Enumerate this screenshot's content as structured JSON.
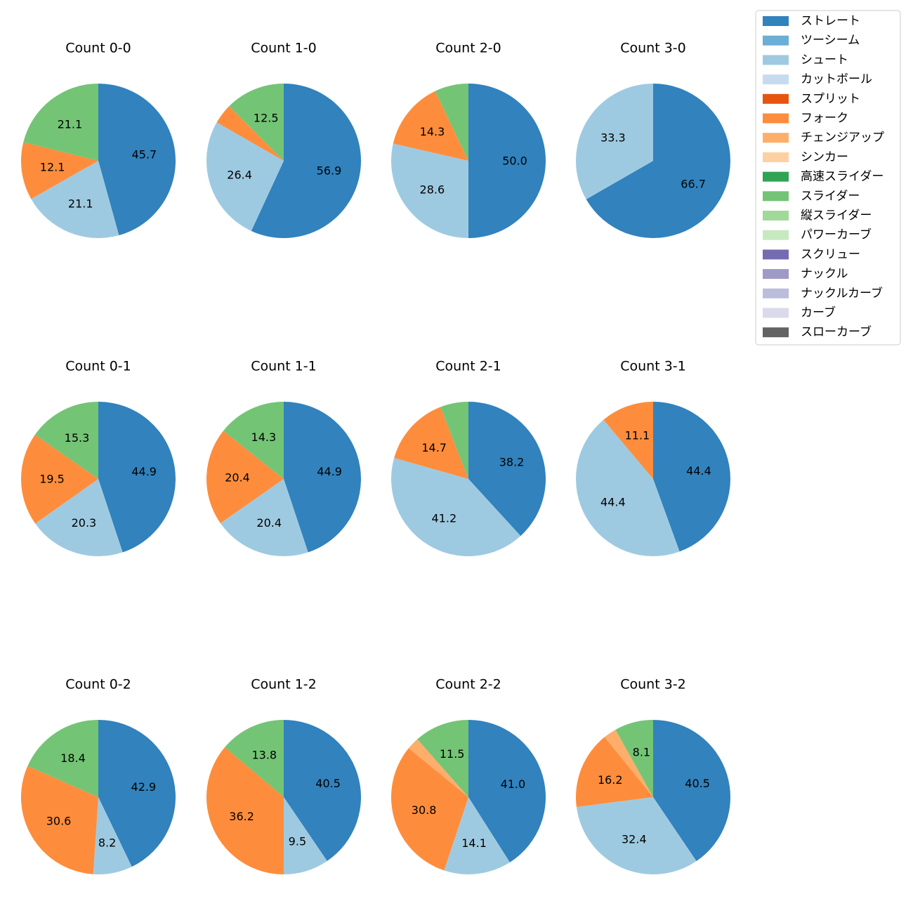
{
  "legend": {
    "items": [
      {
        "label": "ストレート",
        "color": "#3182bd"
      },
      {
        "label": "ツーシーム",
        "color": "#6baed6"
      },
      {
        "label": "シュート",
        "color": "#9ecae1"
      },
      {
        "label": "カットボール",
        "color": "#c6dbef"
      },
      {
        "label": "スプリット",
        "color": "#e6550d"
      },
      {
        "label": "フォーク",
        "color": "#fd8d3c"
      },
      {
        "label": "チェンジアップ",
        "color": "#fdae6b"
      },
      {
        "label": "シンカー",
        "color": "#fdd0a2"
      },
      {
        "label": "高速スライダー",
        "color": "#31a354"
      },
      {
        "label": "スライダー",
        "color": "#74c476"
      },
      {
        "label": "縦スライダー",
        "color": "#a1d99b"
      },
      {
        "label": "パワーカーブ",
        "color": "#c7e9c0"
      },
      {
        "label": "スクリュー",
        "color": "#756bb1"
      },
      {
        "label": "ナックル",
        "color": "#9e9ac8"
      },
      {
        "label": "ナックルカーブ",
        "color": "#bcbddc"
      },
      {
        "label": "カーブ",
        "color": "#dadaeb"
      },
      {
        "label": "スローカーブ",
        "color": "#636363"
      }
    ]
  },
  "chart_data": [
    {
      "type": "pie",
      "title": "Count 0-0",
      "slices": [
        {
          "pitch": "ストレート",
          "value": 45.7,
          "label": "45.7"
        },
        {
          "pitch": "シュート",
          "value": 21.1,
          "label": "21.1"
        },
        {
          "pitch": "フォーク",
          "value": 12.1,
          "label": "12.1"
        },
        {
          "pitch": "スライダー",
          "value": 21.1,
          "label": "21.1"
        }
      ]
    },
    {
      "type": "pie",
      "title": "Count 1-0",
      "slices": [
        {
          "pitch": "ストレート",
          "value": 56.9,
          "label": "56.9"
        },
        {
          "pitch": "シュート",
          "value": 26.4,
          "label": "26.4"
        },
        {
          "pitch": "フォーク",
          "value": 4.2,
          "label": ""
        },
        {
          "pitch": "スライダー",
          "value": 12.5,
          "label": "12.5"
        }
      ]
    },
    {
      "type": "pie",
      "title": "Count 2-0",
      "slices": [
        {
          "pitch": "ストレート",
          "value": 50.0,
          "label": "50.0"
        },
        {
          "pitch": "シュート",
          "value": 28.6,
          "label": "28.6"
        },
        {
          "pitch": "フォーク",
          "value": 14.3,
          "label": "14.3"
        },
        {
          "pitch": "スライダー",
          "value": 7.1,
          "label": ""
        }
      ]
    },
    {
      "type": "pie",
      "title": "Count 3-0",
      "slices": [
        {
          "pitch": "ストレート",
          "value": 66.7,
          "label": "66.7"
        },
        {
          "pitch": "シュート",
          "value": 33.3,
          "label": "33.3"
        }
      ]
    },
    {
      "type": "pie",
      "title": "Count 0-1",
      "slices": [
        {
          "pitch": "ストレート",
          "value": 44.9,
          "label": "44.9"
        },
        {
          "pitch": "シュート",
          "value": 20.3,
          "label": "20.3"
        },
        {
          "pitch": "フォーク",
          "value": 19.5,
          "label": "19.5"
        },
        {
          "pitch": "スライダー",
          "value": 15.3,
          "label": "15.3"
        }
      ]
    },
    {
      "type": "pie",
      "title": "Count 1-1",
      "slices": [
        {
          "pitch": "ストレート",
          "value": 44.9,
          "label": "44.9"
        },
        {
          "pitch": "シュート",
          "value": 20.4,
          "label": "20.4"
        },
        {
          "pitch": "フォーク",
          "value": 20.4,
          "label": "20.4"
        },
        {
          "pitch": "スライダー",
          "value": 14.3,
          "label": "14.3"
        }
      ]
    },
    {
      "type": "pie",
      "title": "Count 2-1",
      "slices": [
        {
          "pitch": "ストレート",
          "value": 38.2,
          "label": "38.2"
        },
        {
          "pitch": "シュート",
          "value": 41.2,
          "label": "41.2"
        },
        {
          "pitch": "フォーク",
          "value": 14.7,
          "label": "14.7"
        },
        {
          "pitch": "スライダー",
          "value": 5.9,
          "label": ""
        }
      ]
    },
    {
      "type": "pie",
      "title": "Count 3-1",
      "slices": [
        {
          "pitch": "ストレート",
          "value": 44.4,
          "label": "44.4"
        },
        {
          "pitch": "シュート",
          "value": 44.4,
          "label": "44.4"
        },
        {
          "pitch": "フォーク",
          "value": 11.1,
          "label": "11.1"
        }
      ]
    },
    {
      "type": "pie",
      "title": "Count 0-2",
      "slices": [
        {
          "pitch": "ストレート",
          "value": 42.9,
          "label": "42.9"
        },
        {
          "pitch": "シュート",
          "value": 8.2,
          "label": "8.2"
        },
        {
          "pitch": "フォーク",
          "value": 30.6,
          "label": "30.6"
        },
        {
          "pitch": "スライダー",
          "value": 18.4,
          "label": "18.4"
        }
      ]
    },
    {
      "type": "pie",
      "title": "Count 1-2",
      "slices": [
        {
          "pitch": "ストレート",
          "value": 40.5,
          "label": "40.5"
        },
        {
          "pitch": "シュート",
          "value": 9.5,
          "label": "9.5"
        },
        {
          "pitch": "フォーク",
          "value": 36.2,
          "label": "36.2"
        },
        {
          "pitch": "スライダー",
          "value": 13.8,
          "label": "13.8"
        }
      ]
    },
    {
      "type": "pie",
      "title": "Count 2-2",
      "slices": [
        {
          "pitch": "ストレート",
          "value": 41.0,
          "label": "41.0"
        },
        {
          "pitch": "シュート",
          "value": 14.1,
          "label": "14.1"
        },
        {
          "pitch": "フォーク",
          "value": 30.8,
          "label": "30.8"
        },
        {
          "pitch": "チェンジアップ",
          "value": 2.6,
          "label": ""
        },
        {
          "pitch": "スライダー",
          "value": 11.5,
          "label": "11.5"
        }
      ]
    },
    {
      "type": "pie",
      "title": "Count 3-2",
      "slices": [
        {
          "pitch": "ストレート",
          "value": 40.5,
          "label": "40.5"
        },
        {
          "pitch": "シュート",
          "value": 32.4,
          "label": "32.4"
        },
        {
          "pitch": "フォーク",
          "value": 16.2,
          "label": "16.2"
        },
        {
          "pitch": "チェンジアップ",
          "value": 2.7,
          "label": ""
        },
        {
          "pitch": "スライダー",
          "value": 8.1,
          "label": "8.1"
        }
      ]
    }
  ]
}
